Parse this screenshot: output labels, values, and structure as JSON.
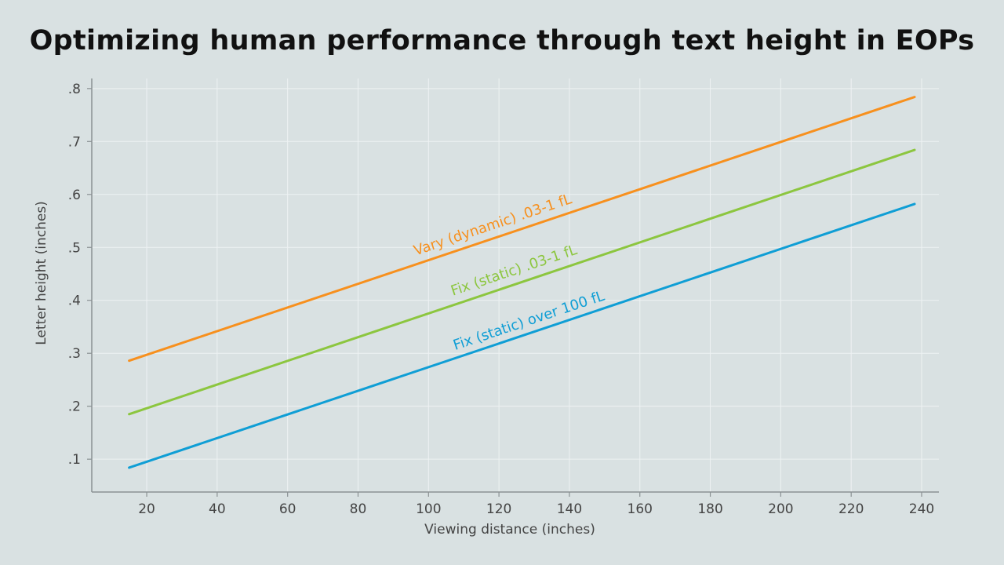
{
  "chart_data": {
    "type": "line",
    "title": "Optimizing human performance through text height in EOPs",
    "xlabel": "Viewing distance (inches)",
    "ylabel": "Letter height (inches)",
    "xlim": [
      4.4,
      244.9
    ],
    "ylim": [
      0.038,
      0.819
    ],
    "grid": true,
    "x_ticks": [
      20,
      40,
      60,
      80,
      100,
      120,
      140,
      160,
      180,
      200,
      220,
      240
    ],
    "x_tick_labels": [
      "20",
      "40",
      "60",
      "80",
      "100",
      "120",
      "140",
      "160",
      "180",
      "200",
      "220",
      "240"
    ],
    "y_ticks": [
      0.1,
      0.2,
      0.3,
      0.4,
      0.5,
      0.6,
      0.7,
      0.8
    ],
    "y_tick_labels": [
      ".1",
      ".2",
      ".3",
      ".4",
      ".5",
      ".6",
      ".7",
      ".8"
    ],
    "series": [
      {
        "name": "Vary (dynamic) .03-1 fL",
        "color": "#f7901e",
        "x": [
          15,
          238
        ],
        "values": [
          0.286,
          0.784
        ]
      },
      {
        "name": "Fix (static) .03-1 fL",
        "color": "#8cc63f",
        "x": [
          15,
          238
        ],
        "values": [
          0.185,
          0.684
        ]
      },
      {
        "name": "Fix (static) over 100 fL",
        "color": "#0f9ed5",
        "x": [
          15,
          238
        ],
        "values": [
          0.084,
          0.582
        ]
      }
    ]
  }
}
